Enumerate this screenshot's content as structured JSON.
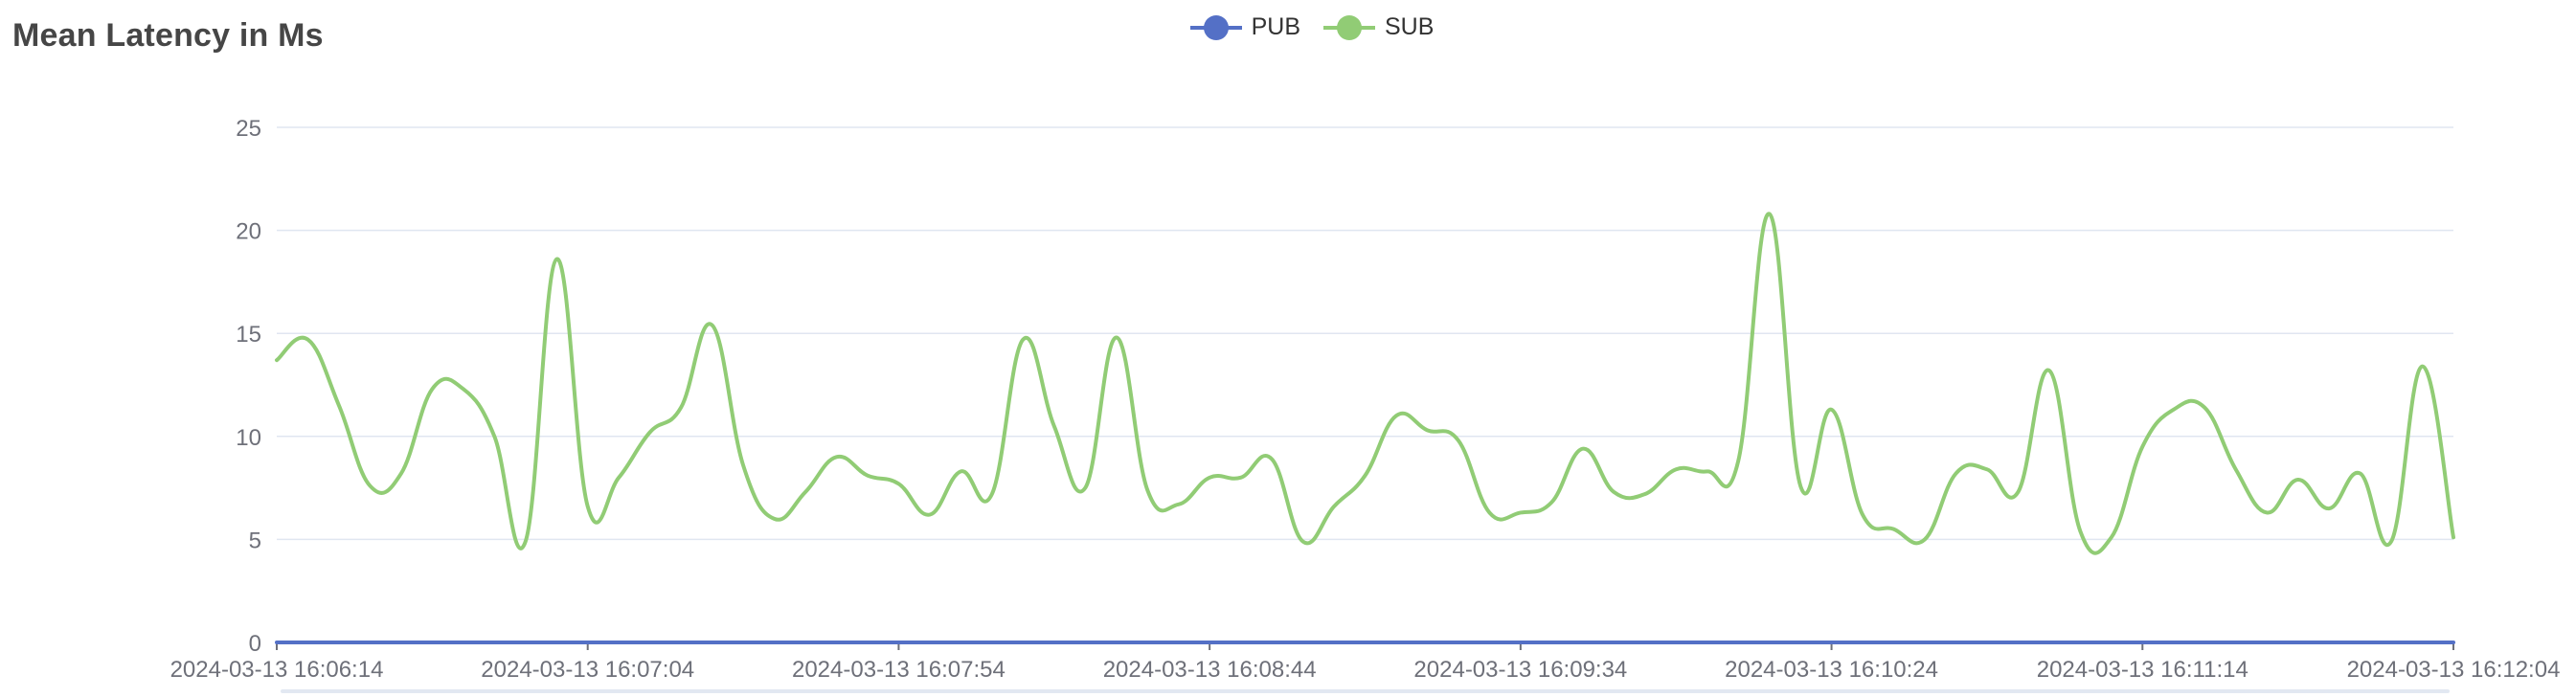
{
  "chart_data": {
    "type": "line",
    "title": "Mean Latency in Ms",
    "xlabel": "",
    "ylabel": "",
    "ylim": [
      0,
      25
    ],
    "yticks": [
      0,
      5,
      10,
      15,
      20,
      25
    ],
    "grid": true,
    "legend_position": "top-center",
    "x": [
      "2024-03-13 16:06:14",
      "2024-03-13 16:06:19",
      "2024-03-13 16:06:24",
      "2024-03-13 16:06:29",
      "2024-03-13 16:06:34",
      "2024-03-13 16:06:39",
      "2024-03-13 16:06:44",
      "2024-03-13 16:06:49",
      "2024-03-13 16:06:54",
      "2024-03-13 16:06:59",
      "2024-03-13 16:07:04",
      "2024-03-13 16:07:09",
      "2024-03-13 16:07:14",
      "2024-03-13 16:07:19",
      "2024-03-13 16:07:24",
      "2024-03-13 16:07:29",
      "2024-03-13 16:07:34",
      "2024-03-13 16:07:39",
      "2024-03-13 16:07:44",
      "2024-03-13 16:07:49",
      "2024-03-13 16:07:54",
      "2024-03-13 16:07:59",
      "2024-03-13 16:08:04",
      "2024-03-13 16:08:09",
      "2024-03-13 16:08:14",
      "2024-03-13 16:08:19",
      "2024-03-13 16:08:24",
      "2024-03-13 16:08:29",
      "2024-03-13 16:08:34",
      "2024-03-13 16:08:39",
      "2024-03-13 16:08:44",
      "2024-03-13 16:08:49",
      "2024-03-13 16:08:54",
      "2024-03-13 16:08:59",
      "2024-03-13 16:09:04",
      "2024-03-13 16:09:09",
      "2024-03-13 16:09:14",
      "2024-03-13 16:09:19",
      "2024-03-13 16:09:24",
      "2024-03-13 16:09:29",
      "2024-03-13 16:09:34",
      "2024-03-13 16:09:39",
      "2024-03-13 16:09:44",
      "2024-03-13 16:09:49",
      "2024-03-13 16:09:54",
      "2024-03-13 16:09:59",
      "2024-03-13 16:10:04",
      "2024-03-13 16:10:09",
      "2024-03-13 16:10:14",
      "2024-03-13 16:10:19",
      "2024-03-13 16:10:24",
      "2024-03-13 16:10:29",
      "2024-03-13 16:10:34",
      "2024-03-13 16:10:39",
      "2024-03-13 16:10:44",
      "2024-03-13 16:10:49",
      "2024-03-13 16:10:54",
      "2024-03-13 16:10:59",
      "2024-03-13 16:11:04",
      "2024-03-13 16:11:09",
      "2024-03-13 16:11:14",
      "2024-03-13 16:11:19",
      "2024-03-13 16:11:24",
      "2024-03-13 16:11:29",
      "2024-03-13 16:11:34",
      "2024-03-13 16:11:39",
      "2024-03-13 16:11:44",
      "2024-03-13 16:11:49",
      "2024-03-13 16:11:54",
      "2024-03-13 16:11:59",
      "2024-03-13 16:12:04"
    ],
    "xtick_labels": [
      "2024-03-13 16:06:14",
      "2024-03-13 16:07:04",
      "2024-03-13 16:07:54",
      "2024-03-13 16:08:44",
      "2024-03-13 16:09:34",
      "2024-03-13 16:10:24",
      "2024-03-13 16:11:14",
      "2024-03-13 16:12:04"
    ],
    "series": [
      {
        "name": "PUB",
        "color": "#5470c6",
        "values": [
          0,
          0,
          0,
          0,
          0,
          0,
          0,
          0,
          0,
          0,
          0,
          0,
          0,
          0,
          0,
          0,
          0,
          0,
          0,
          0,
          0,
          0,
          0,
          0,
          0,
          0,
          0,
          0,
          0,
          0,
          0,
          0,
          0,
          0,
          0,
          0,
          0,
          0,
          0,
          0,
          0,
          0,
          0,
          0,
          0,
          0,
          0,
          0,
          0,
          0,
          0,
          0,
          0,
          0,
          0,
          0,
          0,
          0,
          0,
          0,
          0,
          0,
          0,
          0,
          0,
          0,
          0,
          0,
          0,
          0,
          0
        ]
      },
      {
        "name": "SUB",
        "color": "#91cc75",
        "values": [
          13.7,
          14.7,
          11.5,
          7.6,
          8.2,
          12.3,
          12.3,
          10.0,
          4.9,
          18.6,
          6.6,
          8.0,
          10.2,
          11.4,
          15.4,
          8.6,
          6.0,
          7.3,
          9.0,
          8.1,
          7.7,
          6.2,
          8.3,
          7.2,
          14.7,
          10.5,
          7.5,
          14.8,
          7.4,
          6.7,
          8.0,
          8.0,
          8.9,
          4.9,
          6.6,
          8.1,
          11.0,
          10.3,
          9.8,
          6.3,
          6.3,
          6.8,
          9.4,
          7.3,
          7.2,
          8.4,
          8.3,
          8.8,
          20.8,
          7.6,
          11.3,
          6.2,
          5.5,
          5.0,
          8.2,
          8.4,
          7.3,
          13.2,
          5.4,
          5.1,
          9.5,
          11.3,
          11.4,
          8.4,
          6.3,
          7.9,
          6.5,
          8.2,
          4.9,
          13.4,
          5.1
        ]
      }
    ]
  }
}
